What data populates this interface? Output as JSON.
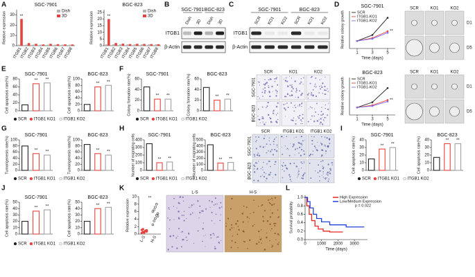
{
  "figure": {
    "panels": [
      {
        "letter": "A",
        "legend": [
          {
            "name": "Dish",
            "color": "#b3b3b3"
          },
          {
            "name": "3D",
            "color": "#e8413c"
          }
        ],
        "charts": [
          {
            "type": "grouped_bar",
            "title": "SGC-7901",
            "ylabel": "Relative expression",
            "categories": [
              "ITGB1",
              "ITGB2",
              "ITGB3",
              "ITGB4",
              "ITGB5",
              "ITGB6",
              "ITGB7",
              "ITGB8"
            ],
            "series": [
              {
                "values": [
                  1,
                  1,
                  1,
                  1,
                  1,
                  1,
                  1,
                  1
                ]
              },
              {
                "values": [
                  26,
                  2.5,
                  1.8,
                  1.2,
                  1.8,
                  1.5,
                  1.3,
                  1.2
                ]
              }
            ],
            "significance": [
              "**",
              null,
              null,
              null,
              null,
              null,
              null,
              null
            ],
            "ylim": [
              0,
              35
            ],
            "yticks": [
              0,
              10,
              20,
              30
            ]
          },
          {
            "type": "grouped_bar",
            "title": "BGC-823",
            "ylabel": "Relative expression",
            "categories": [
              "ITGB1",
              "ITGB2",
              "ITGB3",
              "ITGB4",
              "ITGB5",
              "ITGB6",
              "ITGB7",
              "ITGB8"
            ],
            "series": [
              {
                "values": [
                  1,
                  1,
                  1,
                  1,
                  1,
                  1,
                  1,
                  1
                ]
              },
              {
                "values": [
                  20,
                  2,
                  1.5,
                  1.2,
                  1.4,
                  1.3,
                  1.2,
                  1.1
                ]
              }
            ],
            "significance": [
              "**",
              null,
              null,
              null,
              null,
              null,
              null,
              null
            ],
            "ylim": [
              0,
              27
            ],
            "yticks": [
              0,
              5,
              10,
              15,
              20,
              25
            ]
          }
        ]
      },
      {
        "letter": "B",
        "blot": {
          "groups": [
            "SGC-7901",
            "BGC-823"
          ],
          "lanes": [
            "Dish",
            "3D",
            "Dish",
            "3D"
          ],
          "rows": [
            "ITGB1",
            "β-Actin"
          ]
        }
      },
      {
        "letter": "C",
        "blot": {
          "groups": [
            "SGC-7901",
            "BGC-823"
          ],
          "lanes": [
            "SCR",
            "KO1",
            "KO2",
            "SCR",
            "KO1",
            "KO2"
          ],
          "rows": [
            "ITGB1",
            "β-Actin"
          ]
        }
      },
      {
        "letter": "D",
        "charts": [
          {
            "type": "line",
            "title": "SGC-7901",
            "ylabel": "Relative colony growth",
            "xlabel": "Time (days)",
            "x": [
              1,
              3,
              5
            ],
            "xlim": [
              0,
              6
            ],
            "xticks": [
              1,
              3,
              5
            ],
            "ylim": [
              0,
              5
            ],
            "series": [
              {
                "name": "SCR",
                "color": "#222222",
                "values": [
                  1,
                  1.8,
                  4.1
                ]
              },
              {
                "name": "ITGB1-KO1",
                "color": "#e8413c",
                "values": [
                  1,
                  1.4,
                  2.3
                ]
              },
              {
                "name": "ITGB1-KO2",
                "color": "#7b68ee",
                "values": [
                  1,
                  1.3,
                  2.1
                ]
              }
            ],
            "end_label": "**"
          },
          {
            "type": "line",
            "title": "BGC-823",
            "ylabel": "Relative colony growth",
            "xlabel": "Time (days)",
            "x": [
              1,
              3,
              5
            ],
            "xlim": [
              0,
              6
            ],
            "xticks": [
              1,
              3,
              5
            ],
            "ylim": [
              0,
              5
            ],
            "series": [
              {
                "name": "SCR",
                "color": "#222222",
                "values": [
                  1,
                  1.7,
                  3.6
                ]
              },
              {
                "name": "ITGB1-KO1",
                "color": "#e8413c",
                "values": [
                  1,
                  1.3,
                  2.0
                ]
              },
              {
                "name": "ITGB1-KO2",
                "color": "#7b68ee",
                "values": [
                  1,
                  1.2,
                  1.8
                ]
              }
            ],
            "end_label": "**"
          }
        ],
        "grids": [
          {
            "columns": [
              "SCR",
              "KO1",
              "KO2"
            ],
            "rows": [
              "D1",
              "D5"
            ]
          },
          {
            "columns": [
              "SCR",
              "KO1",
              "KO2"
            ],
            "rows": [
              "D1",
              "D5"
            ]
          }
        ]
      },
      {
        "letter": "E",
        "legend": [
          {
            "name": "SCR",
            "color": "#222222"
          },
          {
            "name": "ITGB1 KO1",
            "color": "#e8413c"
          },
          {
            "name": "ITGB1 KO2",
            "color": "#a0a0a0"
          }
        ],
        "charts": [
          {
            "type": "bar",
            "title": "SGC-7901",
            "ylabel": "Cell apoptosis rate(%)",
            "values": [
              15,
              68,
              70
            ],
            "significance": [
              null,
              "**",
              "**"
            ],
            "ylim": [
              0,
              80
            ],
            "yticks": [
              0,
              20,
              40,
              60,
              80
            ]
          },
          {
            "type": "bar",
            "title": "BGC-823",
            "ylabel": "Cell apoptosis rate(%)",
            "values": [
              20,
              75,
              80
            ],
            "significance": [
              null,
              "**",
              "**"
            ],
            "ylim": [
              0,
              100
            ],
            "yticks": [
              0,
              20,
              40,
              60,
              80,
              100
            ]
          }
        ]
      },
      {
        "letter": "F",
        "legend": [
          {
            "name": "SCR",
            "color": "#222222"
          },
          {
            "name": "ITGB1 KO1",
            "color": "#e8413c"
          },
          {
            "name": "ITGB1 KO2",
            "color": "#a0a0a0"
          }
        ],
        "charts": [
          {
            "type": "bar",
            "title": "SGC-7901",
            "ylabel": "Colony formation rate(%)",
            "values": [
              45,
              22,
              22
            ],
            "significance": [
              null,
              "**",
              "**"
            ],
            "ylim": [
              0,
              60
            ],
            "yticks": [
              0,
              20,
              40,
              60
            ]
          },
          {
            "type": "bar",
            "title": "BGC-823",
            "ylabel": "Colony formation rate(%)",
            "values": [
              44,
              20,
              22
            ],
            "significance": [
              null,
              "**",
              "**"
            ],
            "ylim": [
              0,
              60
            ],
            "yticks": [
              0,
              20,
              40,
              60
            ]
          }
        ],
        "grids": [
          {
            "columns": [
              "SCR",
              "KO1",
              "KO2"
            ],
            "rows": [
              "SGC-7901",
              "BGC-823"
            ]
          }
        ]
      },
      {
        "letter": "G",
        "legend": [
          {
            "name": "SCR",
            "color": "#222222"
          },
          {
            "name": "ITGB1 KO1",
            "color": "#e8413c"
          },
          {
            "name": "ITGB1 KO2",
            "color": "#a0a0a0"
          }
        ],
        "charts": [
          {
            "type": "bar",
            "title": "SGC-7901",
            "ylabel": "Tumorigenesis rate(%)",
            "values": [
              80,
              55,
              50
            ],
            "significance": [
              null,
              "**",
              "**"
            ],
            "ylim": [
              0,
              100
            ],
            "yticks": [
              0,
              20,
              40,
              60,
              80,
              100
            ]
          },
          {
            "type": "bar",
            "title": "BGC-823",
            "ylabel": "Tumorigenesis rate(%)",
            "values": [
              85,
              55,
              50
            ],
            "significance": [
              null,
              "**",
              "**"
            ],
            "ylim": [
              0,
              100
            ],
            "yticks": [
              0,
              20,
              40,
              60,
              80,
              100
            ]
          }
        ]
      },
      {
        "letter": "H",
        "legend": [
          {
            "name": "SCR",
            "color": "#222222"
          },
          {
            "name": "ITGB1 KO1",
            "color": "#e8413c"
          },
          {
            "name": "ITGB1 KO2",
            "color": "#a0a0a0"
          }
        ],
        "charts": [
          {
            "type": "bar",
            "title": "SGC-7901",
            "ylabel": "Number of migrating cells",
            "values": [
              350,
              100,
              110
            ],
            "significance": [
              null,
              "**",
              "**"
            ],
            "ylim": [
              0,
              400
            ],
            "yticks": [
              0,
              100,
              200,
              300,
              400
            ]
          },
          {
            "type": "bar",
            "title": "BGC-823",
            "ylabel": "Number of migrating cells",
            "values": [
              420,
              120,
              130
            ],
            "significance": [
              null,
              "**",
              "**"
            ],
            "ylim": [
              0,
              500
            ],
            "yticks": [
              0,
              100,
              200,
              300,
              400,
              500
            ]
          }
        ],
        "grids": [
          {
            "columns": [
              "SCR",
              "ITGB1 KO1",
              "ITGB1 KO2"
            ],
            "rows": [
              "SGC-7901",
              "BGC-823"
            ]
          }
        ]
      },
      {
        "letter": "I",
        "legend": [
          {
            "name": "SCR",
            "color": "#222222"
          },
          {
            "name": "ITGB1 KO1",
            "color": "#e8413c"
          },
          {
            "name": "ITGB1 KO2",
            "color": "#a0a0a0"
          }
        ],
        "charts": [
          {
            "type": "bar",
            "title": "SGC-7901",
            "ylabel": "Cell apoptosis rate(%)",
            "values": [
              15,
              28,
              30
            ],
            "significance": [
              null,
              "**",
              "**"
            ],
            "ylim": [
              0,
              40
            ],
            "yticks": [
              0,
              10,
              20,
              30,
              40
            ]
          },
          {
            "type": "bar",
            "title": "BGC-823",
            "ylabel": "Cell apoptosis rate(%)",
            "values": [
              17,
              35,
              35
            ],
            "significance": [
              null,
              "**",
              "**"
            ],
            "ylim": [
              0,
              40
            ],
            "yticks": [
              0,
              10,
              20,
              30,
              40
            ]
          }
        ]
      },
      {
        "letter": "J",
        "legend": [
          {
            "name": "SCR",
            "color": "#222222"
          },
          {
            "name": "ITGB1 KO1",
            "color": "#e8413c"
          },
          {
            "name": "ITGB1 KO2",
            "color": "#a0a0a0"
          }
        ],
        "charts": [
          {
            "type": "bar",
            "title": "SGC-7901",
            "ylabel": "Cell apoptosis rate(%)",
            "values": [
              20,
              36,
              38
            ],
            "significance": [
              null,
              "**",
              "**"
            ],
            "ylim": [
              0,
              50
            ],
            "yticks": [
              0,
              10,
              20,
              30,
              40,
              50
            ]
          },
          {
            "type": "bar",
            "title": "BGC-823",
            "ylabel": "Cell apoptosis rate(%)",
            "values": [
              20,
              40,
              42
            ],
            "significance": [
              null,
              "**",
              "**"
            ],
            "ylim": [
              0,
              50
            ],
            "yticks": [
              0,
              10,
              20,
              30,
              40,
              50
            ]
          }
        ]
      },
      {
        "letter": "K",
        "charts": [
          {
            "type": "dot",
            "ylabel": "Relative expression",
            "categories": [
              "L-S",
              "H-S"
            ],
            "colors": [
              "#e8413c",
              "#333333"
            ],
            "values": [
              [
                0.3,
                0.5,
                0.6,
                0.8,
                1.0,
                1.1,
                1.3,
                0.4,
                0.9,
                0.7
              ],
              [
                2.5,
                3.5,
                4.2,
                5,
                5.5,
                6,
                6.5,
                7.2,
                8,
                4.8
              ]
            ],
            "ylim": [
              0,
              10
            ],
            "yticks": [
              0,
              2,
              4,
              6,
              8,
              10
            ],
            "annotation": "**"
          }
        ],
        "grids": [
          {
            "columns": [
              "L-S",
              "H-S"
            ],
            "rows": []
          }
        ]
      },
      {
        "letter": "L",
        "charts": [
          {
            "type": "survival",
            "ylabel": "Survival probability",
            "xlabel": "Time (days)",
            "xlim": [
              0,
              3800
            ],
            "xticks": [
              0,
              1000,
              2000,
              3000
            ],
            "ylim": [
              0,
              1.05
            ],
            "yticks": [
              {
                "value": 0,
                "label": "0.0"
              },
              {
                "value": 0.2,
                "label": "0.2"
              },
              {
                "value": 0.4,
                "label": "0.4"
              },
              {
                "value": 0.6,
                "label": "0.6"
              },
              {
                "value": 0.8,
                "label": "0.8"
              },
              {
                "value": 1,
                "label": "1.0"
              }
            ],
            "series": [
              {
                "name": "High Expression",
                "color": "#e8261f",
                "x": [
                  0,
                  100,
                  100,
                  250,
                  250,
                  400,
                  400,
                  600,
                  600,
                  800,
                  800,
                  1100,
                  1100,
                  1500,
                  1500,
                  2300
                ],
                "values": [
                  1,
                  1,
                  0.8,
                  0.8,
                  0.6,
                  0.6,
                  0.45,
                  0.45,
                  0.32,
                  0.32,
                  0.25,
                  0.25,
                  0.2,
                  0.2,
                  0.18,
                  0.18
                ]
              },
              {
                "name": "Low/Medium Expression",
                "color": "#2340d8",
                "x": [
                  0,
                  150,
                  150,
                  300,
                  300,
                  500,
                  500,
                  700,
                  700,
                  1000,
                  1000,
                  1500,
                  1500,
                  2500,
                  2500,
                  3600
                ],
                "values": [
                  1,
                  1,
                  0.9,
                  0.9,
                  0.75,
                  0.75,
                  0.6,
                  0.6,
                  0.5,
                  0.5,
                  0.42,
                  0.42,
                  0.35,
                  0.35,
                  0.3,
                  0.3
                ]
              }
            ],
            "annotation": "p = 0.022"
          }
        ]
      }
    ]
  }
}
